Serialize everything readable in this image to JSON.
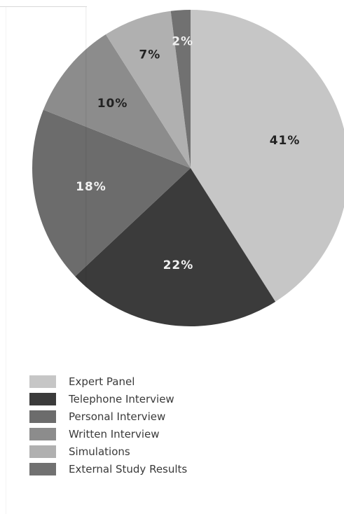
{
  "chart_data": {
    "type": "pie",
    "title": "",
    "slices": [
      {
        "label": "Expert Panel",
        "value": 41,
        "display": "41%",
        "color": "#c6c6c6",
        "label_color": "#222222"
      },
      {
        "label": "Telephone Interview",
        "value": 22,
        "display": "22%",
        "color": "#3b3b3b",
        "label_color": "#f2f2f2"
      },
      {
        "label": "Personal Interview",
        "value": 18,
        "display": "18%",
        "color": "#6c6c6c",
        "label_color": "#f2f2f2"
      },
      {
        "label": "Written Interview",
        "value": 10,
        "display": "10%",
        "color": "#8c8c8c",
        "label_color": "#222222"
      },
      {
        "label": "Simulations",
        "value": 7,
        "display": "7%",
        "color": "#b0b0b0",
        "label_color": "#222222"
      },
      {
        "label": "External Study Results",
        "value": 2,
        "display": "2%",
        "color": "#717171",
        "label_color": "#f2f2f2"
      }
    ],
    "legend_position": "bottom-left",
    "start_angle_deg": 0,
    "direction": "clockwise"
  }
}
